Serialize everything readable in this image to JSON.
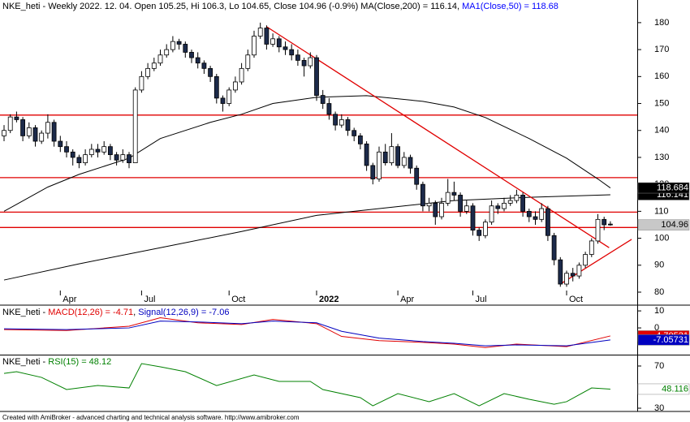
{
  "chart_data": [
    {
      "type": "candlestick",
      "title": [
        {
          "text": "NKE_heti - Weekly 2022. 12. 04. Open 105.25, Hi 106.3, Lo 104.65, Close 104.96 (-0.9%) MA(Close,200) = 116.14, ",
          "color": "#000000"
        },
        {
          "text": "MA1(Close,50) = 118.68",
          "color": "#0000ff"
        }
      ],
      "ohlc": [
        [
          138,
          142,
          136,
          140
        ],
        [
          140,
          146,
          139,
          145
        ],
        [
          145,
          147,
          143,
          144
        ],
        [
          144,
          145,
          136,
          138
        ],
        [
          138,
          143,
          137,
          141
        ],
        [
          141,
          142,
          134,
          136
        ],
        [
          136,
          140,
          135,
          139
        ],
        [
          139,
          146,
          137,
          143
        ],
        [
          143,
          144,
          134,
          136
        ],
        [
          136,
          138,
          132,
          134
        ],
        [
          134,
          136,
          130,
          132
        ],
        [
          132,
          133,
          127,
          130
        ],
        [
          130,
          131,
          126,
          128
        ],
        [
          128,
          133,
          127,
          131
        ],
        [
          131,
          135,
          130,
          133
        ],
        [
          133,
          135,
          130,
          132
        ],
        [
          132,
          136,
          131,
          134
        ],
        [
          134,
          135,
          129,
          131
        ],
        [
          131,
          132,
          127,
          129
        ],
        [
          129,
          133,
          128,
          131
        ],
        [
          131,
          132,
          126,
          128
        ],
        [
          128,
          156,
          128,
          155
        ],
        [
          155,
          162,
          154,
          160
        ],
        [
          160,
          165,
          159,
          163
        ],
        [
          163,
          167,
          162,
          165
        ],
        [
          165,
          170,
          164,
          168
        ],
        [
          168,
          172,
          167,
          170
        ],
        [
          170,
          175,
          169,
          173
        ],
        [
          173,
          174,
          170,
          172
        ],
        [
          172,
          173,
          167,
          169
        ],
        [
          169,
          170,
          165,
          167
        ],
        [
          167,
          169,
          163,
          165
        ],
        [
          165,
          166,
          161,
          163
        ],
        [
          163,
          164,
          158,
          160
        ],
        [
          160,
          161,
          150,
          152
        ],
        [
          152,
          153,
          147,
          150
        ],
        [
          150,
          156,
          149,
          155
        ],
        [
          155,
          160,
          154,
          158
        ],
        [
          158,
          165,
          157,
          163
        ],
        [
          163,
          170,
          162,
          168
        ],
        [
          168,
          177,
          167,
          175
        ],
        [
          175,
          180,
          174,
          178
        ],
        [
          178,
          179,
          170,
          172
        ],
        [
          172,
          176,
          171,
          174
        ],
        [
          174,
          175,
          169,
          171
        ],
        [
          171,
          173,
          168,
          170
        ],
        [
          170,
          172,
          166,
          168
        ],
        [
          168,
          170,
          164,
          166
        ],
        [
          166,
          167,
          160,
          164
        ],
        [
          164,
          169,
          163,
          167
        ],
        [
          167,
          168,
          151,
          153
        ],
        [
          153,
          155,
          148,
          150
        ],
        [
          150,
          152,
          144,
          146
        ],
        [
          146,
          147,
          140,
          142
        ],
        [
          142,
          146,
          141,
          144
        ],
        [
          144,
          145,
          138,
          140
        ],
        [
          140,
          141,
          136,
          138
        ],
        [
          138,
          139,
          133,
          135
        ],
        [
          135,
          136,
          125,
          127
        ],
        [
          127,
          128,
          120,
          122
        ],
        [
          122,
          134,
          121,
          132
        ],
        [
          132,
          135,
          127,
          128
        ],
        [
          128,
          139,
          127,
          134
        ],
        [
          134,
          135,
          126,
          127
        ],
        [
          127,
          132,
          126,
          130
        ],
        [
          130,
          131,
          124,
          126
        ],
        [
          126,
          127,
          118,
          120
        ],
        [
          120,
          121,
          110,
          112
        ],
        [
          112,
          115,
          110,
          113
        ],
        [
          113,
          114,
          105,
          108
        ],
        [
          108,
          115,
          107,
          113
        ],
        [
          113,
          122,
          112,
          117
        ],
        [
          117,
          121,
          114,
          116
        ],
        [
          116,
          117,
          108,
          110
        ],
        [
          110,
          114,
          109,
          112
        ],
        [
          112,
          113,
          101,
          103
        ],
        [
          103,
          104,
          99,
          101
        ],
        [
          101,
          107,
          100,
          106
        ],
        [
          106,
          114,
          105,
          112
        ],
        [
          112,
          113,
          109,
          111
        ],
        [
          111,
          115,
          110,
          113
        ],
        [
          113,
          116,
          112,
          114
        ],
        [
          114,
          118,
          113,
          116
        ],
        [
          116,
          117,
          108,
          110
        ],
        [
          110,
          111,
          106,
          108
        ],
        [
          108,
          110,
          105,
          107
        ],
        [
          107,
          113,
          106,
          111
        ],
        [
          111,
          112,
          99,
          101
        ],
        [
          101,
          102,
          90,
          92
        ],
        [
          92,
          93,
          82,
          83
        ],
        [
          83,
          88,
          82,
          87
        ],
        [
          87,
          89,
          84,
          86
        ],
        [
          86,
          91,
          85,
          90
        ],
        [
          90,
          95,
          89,
          94
        ],
        [
          94,
          100,
          93,
          99
        ],
        [
          99,
          109,
          98,
          107
        ],
        [
          107,
          108,
          103,
          105
        ],
        [
          105.25,
          106.3,
          104.65,
          104.96
        ]
      ],
      "up_color": "#ffffff",
      "down_color": "#1c2a4a",
      "outline": "#000000",
      "close_box": "#c8c8c8",
      "series": [
        {
          "color": "#000000",
          "x": [
            0,
            12,
            25,
            38,
            50,
            62,
            72,
            84,
            97
          ],
          "values": [
            84.5,
            90.5,
            96.5,
            102.5,
            108.5,
            111.5,
            114,
            115.2,
            116.141
          ],
          "label_box": "#000000",
          "label_text": "#ffffff"
        },
        {
          "color": "#000000",
          "x": [
            0,
            7,
            12,
            20,
            25,
            33,
            38,
            43,
            50,
            58,
            67,
            72,
            77,
            84,
            90,
            95,
            97
          ],
          "values": [
            110,
            119,
            123.7,
            129.7,
            137,
            143,
            146,
            150,
            152.3,
            152.9,
            150.8,
            148.7,
            144.8,
            137,
            129.7,
            122,
            118.684
          ],
          "label_box": "#000000",
          "label_text": "#ffffff"
        }
      ],
      "hlines": {
        "color": "#e00000",
        "values": [
          145.7,
          122.5,
          109.7,
          104
        ]
      },
      "trendlines": {
        "color": "#e00000",
        "segments": [
          {
            "x": [
              42,
              96.8
            ],
            "values": [
              178.5,
              96.5
            ]
          },
          {
            "x": [
              89,
              100.4
            ],
            "values": [
              83,
              99.6
            ]
          }
        ]
      },
      "ylim": [
        79.4,
        188.4
      ],
      "yticks": [
        80,
        90,
        100,
        110,
        120,
        130,
        140,
        150,
        160,
        170,
        180
      ],
      "xticks": [
        {
          "value": 9,
          "label": "Apr"
        },
        {
          "value": 22,
          "label": "Jul"
        },
        {
          "value": 36,
          "label": "Oct"
        },
        {
          "value": 50,
          "label": "2022"
        },
        {
          "value": 63,
          "label": "Apr"
        },
        {
          "value": 75,
          "label": "Jul"
        },
        {
          "value": 90,
          "label": "Oct"
        }
      ]
    },
    {
      "type": "line",
      "title": [
        {
          "text": "NKE_heti - ",
          "color": "#000000"
        },
        {
          "text": "MACD(12,26) = -4.71",
          "color": "#e00000"
        },
        {
          "text": ", ",
          "color": "#000000"
        },
        {
          "text": "Signal(12,26,9) = -7.06",
          "color": "#0000c0"
        }
      ],
      "series": [
        {
          "color": "#e00000",
          "x": [
            0,
            10,
            20,
            25,
            31,
            38,
            43,
            50,
            54,
            60,
            67,
            72,
            77,
            82,
            90,
            97
          ],
          "values": [
            -1,
            -1.5,
            1,
            6,
            3,
            2,
            5,
            2.5,
            -5,
            -7.5,
            -8.5,
            -9.5,
            -11.5,
            -9.5,
            -11,
            -4.70531
          ],
          "label_box": "#e00000",
          "label_text": "#ffffff"
        },
        {
          "color": "#0000c0",
          "x": [
            0,
            10,
            20,
            25,
            31,
            38,
            43,
            50,
            54,
            60,
            67,
            72,
            77,
            82,
            90,
            97
          ],
          "values": [
            -0.5,
            -1,
            0,
            4,
            3.5,
            2.5,
            4,
            3,
            -2,
            -6,
            -8,
            -9,
            -10.5,
            -10,
            -10.5,
            -7.05731
          ],
          "label_box": "#0000c0",
          "label_text": "#ffffff"
        }
      ],
      "ylim": [
        -15.7,
        12.9
      ],
      "yticks": [
        0,
        10
      ]
    },
    {
      "type": "line",
      "title": [
        {
          "text": "NKE_heti - ",
          "color": "#000000"
        },
        {
          "text": "RSI(15) = 48.12",
          "color": "#008000"
        }
      ],
      "series": [
        {
          "color": "#008000",
          "x": [
            0,
            2,
            6,
            10,
            15,
            20,
            22,
            25,
            29,
            34,
            40,
            44,
            49,
            51,
            57,
            59,
            63,
            68,
            72,
            76,
            80,
            84,
            88,
            90,
            94,
            97
          ],
          "values": [
            63,
            64.6,
            59.2,
            47.7,
            51.5,
            49.2,
            72.3,
            69.2,
            64.6,
            51.5,
            61.5,
            55.4,
            55.4,
            47.7,
            40,
            32.3,
            43.8,
            36.2,
            43.8,
            32.3,
            43.8,
            38.5,
            33.8,
            36.2,
            49.2,
            48.116
          ],
          "label_box": "#ffffff",
          "label_text": "#008000"
        }
      ],
      "ylim": [
        27.7,
        80
      ],
      "yticks": [
        30,
        70
      ]
    }
  ],
  "footer": "Created with AmiBroker - advanced charting and technical analysis software. http://www.amibroker.com"
}
